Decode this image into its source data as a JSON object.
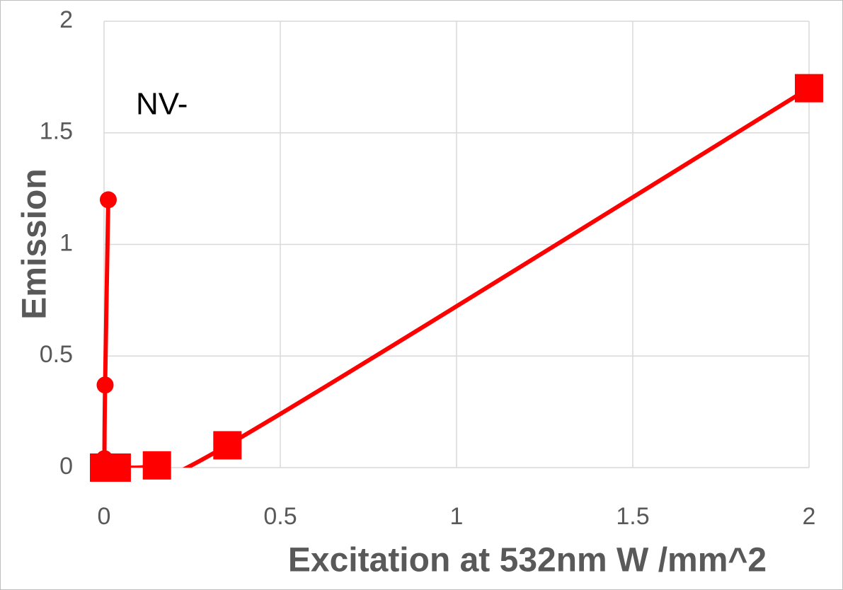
{
  "chart_data": {
    "type": "scatter",
    "annotation": "NV-",
    "x_label": "Excitation at 532nm  W /mm^2",
    "y_label": "Emission",
    "xlim": [
      0,
      2
    ],
    "ylim": [
      0,
      2
    ],
    "xticks": [
      0,
      0.5,
      1,
      1.5,
      2
    ],
    "yticks": [
      0,
      0.5,
      1,
      1.5,
      2
    ],
    "grid": true,
    "smooth": true,
    "series": [
      {
        "color": "#ff0000",
        "marker": "circle",
        "x": [
          0.001,
          0.003,
          0.012
        ],
        "values": [
          0.04,
          0.37,
          1.2
        ]
      },
      {
        "color": "#ff0000",
        "marker": "square",
        "x": [
          0,
          0.036,
          0.15,
          0.35,
          2
        ],
        "values": [
          0,
          0,
          0.01,
          0.1,
          1.7
        ]
      }
    ]
  }
}
